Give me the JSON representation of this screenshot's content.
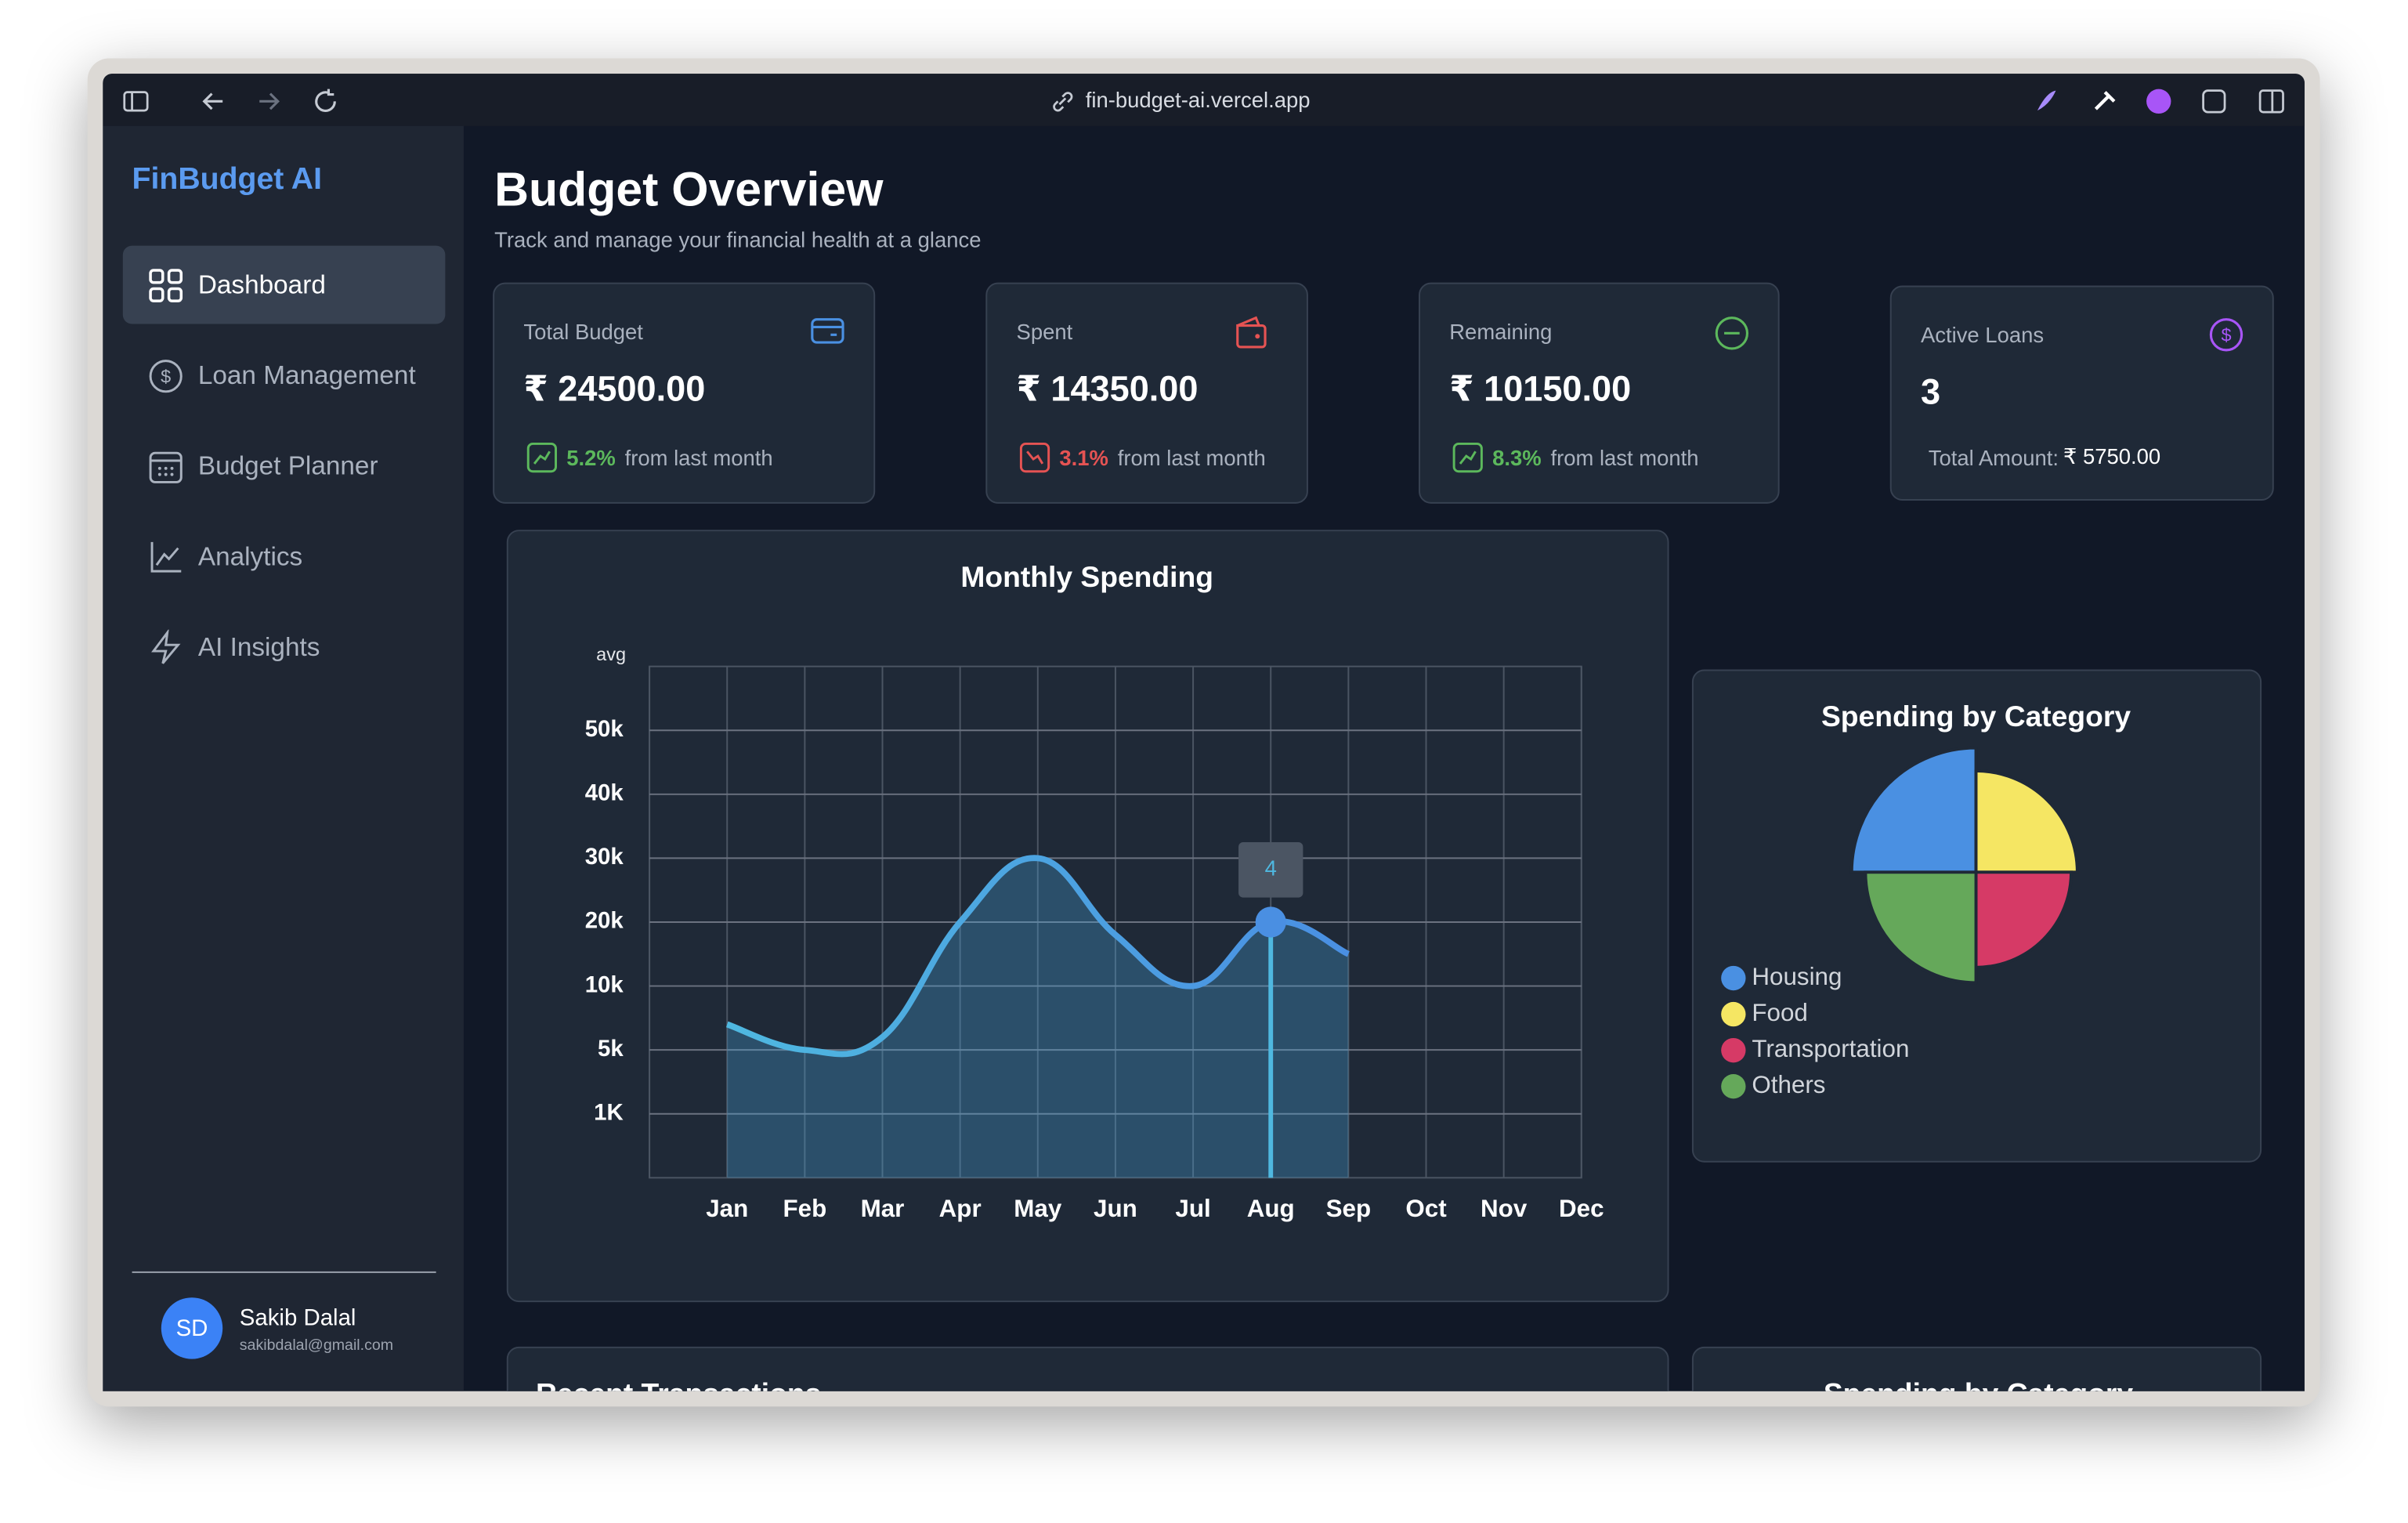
{
  "browser": {
    "url": "fin-budget-ai.vercel.app"
  },
  "sidebar": {
    "brand": "FinBudget AI",
    "nav": [
      "Dashboard",
      "Loan Management",
      "Budget Planner",
      "Analytics",
      "AI Insights"
    ],
    "user": {
      "initials": "SD",
      "name": "Sakib Dalal",
      "email": "sakibdalal@gmail.com"
    }
  },
  "header": {
    "title": "Budget Overview",
    "subtitle": "Track and manage your financial health at a glance"
  },
  "cards": [
    {
      "label": "Total Budget",
      "value": "₹ 24500.00",
      "change": "5.2%",
      "change_text": "from last month"
    },
    {
      "label": "Spent",
      "value": "₹ 14350.00",
      "change": "3.1%",
      "change_text": "from last month"
    },
    {
      "label": "Remaining",
      "value": "₹ 10150.00",
      "change": "8.3%",
      "change_text": "from last month"
    },
    {
      "label": "Active Loans",
      "value": "3",
      "footer_label": "Total Amount:",
      "footer_value": "₹ 5750.00"
    }
  ],
  "chart_data": [
    {
      "type": "line",
      "title": "Monthly Spending",
      "y_axis_label": "avg",
      "categories": [
        "Jan",
        "Feb",
        "Mar",
        "Apr",
        "May",
        "Jun",
        "Jul",
        "Aug",
        "Sep",
        "Oct",
        "Nov",
        "Dec"
      ],
      "values": [
        7000,
        5000,
        6000,
        20000,
        30000,
        18000,
        10000,
        20000,
        15000,
        null,
        null,
        null
      ],
      "color": "#4aa8e0",
      "ylim": [
        0,
        60000
      ],
      "yticks": [
        {
          "value": 1000,
          "label": "1K"
        },
        {
          "value": 5000,
          "label": "5k"
        },
        {
          "value": 10000,
          "label": "10k"
        },
        {
          "value": 20000,
          "label": "20k"
        },
        {
          "value": 30000,
          "label": "30k"
        },
        {
          "value": 40000,
          "label": "40k"
        },
        {
          "value": 50000,
          "label": "50k"
        }
      ],
      "grid": true,
      "highlight": "Aug",
      "tooltip": "4"
    },
    {
      "type": "polarArea",
      "title": "Spending by Category",
      "categories": [
        "Housing",
        "Food",
        "Transportation",
        "Others"
      ],
      "values": [
        4050,
        3300,
        3100,
        3600
      ],
      "colors": [
        "#4a90e2",
        "#f5e663",
        "#d63a66",
        "#65a85a"
      ]
    }
  ],
  "lower_cards": [
    "Recent Transactions",
    "Spending by Category"
  ]
}
